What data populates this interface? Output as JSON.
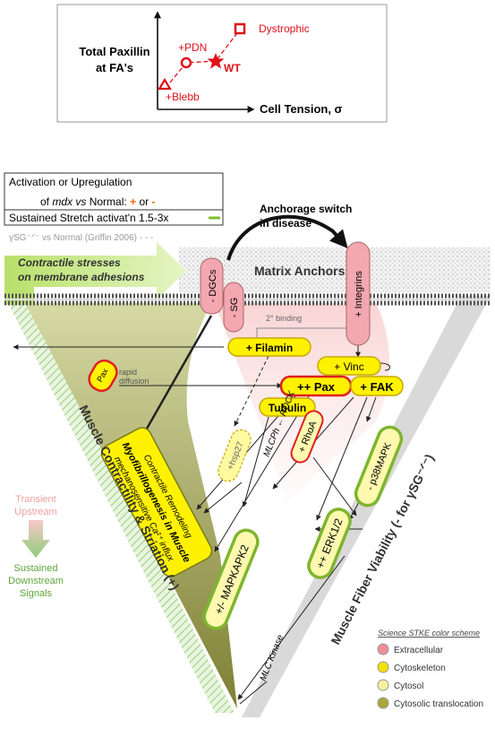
{
  "inset": {
    "y_label_1": "Total Paxillin",
    "y_label_2": "at FA's",
    "x_label": "Cell Tension, σ",
    "points": {
      "dystrophic": "Dystrophic",
      "pdn": "+PDN",
      "wt": "WT",
      "blebb": "+Blebb"
    }
  },
  "legend": {
    "row1_a": "Activation or Upregulation",
    "row1_b_prefix": "of",
    "row1_b_mdx": "mdx",
    "row1_b_vs": "vs",
    "row1_b_normal": "Normal:",
    "row1_plus": "+",
    "row1_or": "or",
    "row1_minus": "-",
    "row2": "Sustained Stretch activat'n 1.5-3x",
    "row3": "γSG⁻ᐟ⁻ vs Normal (Griffin 2006) - - -"
  },
  "top": {
    "anchorage_1": "Anchorage switch",
    "anchorage_2": "in disease",
    "stresses_1": "Contractile stresses",
    "stresses_2": "on membrane adhesions",
    "matrix_anchors": "Matrix Anchors",
    "second_binding": "2° binding"
  },
  "nodes": {
    "dgcs": "- DGCs",
    "sg": "- SG",
    "integrins": "+ Integrins",
    "filamin": "+ Filamin",
    "vinc": "+ Vinc",
    "pax": "++ Pax",
    "fak": "+ FAK",
    "pax_small": "Pax",
    "tubulin": "Tubulin",
    "rhoa": "+ RhoA",
    "hsp27": "+hsp27",
    "p38mapk": "- p38MAPK",
    "erk": "++ ERK1/2",
    "mapkapk2": "+/- MAPKAPK2"
  },
  "labels": {
    "rapid_1": "rapid",
    "rapid_2": "diffusion",
    "mlcph": "MLCPh ← ROCK",
    "mlc_kinase": "MLC Kinase",
    "remodel_1": "Contractile Remodeling",
    "remodel_2": "Myofibrillogenesis in Muscle",
    "remodel_3": "mechanosensitive Ca²⁺ influx",
    "muscle_contractility": "Muscle Contractility & Striation (+)",
    "muscle_viability": "Muscle Fiber Viability (- for γSG⁻ᐟ⁻)",
    "transient_1": "Transient",
    "transient_2": "Upstream",
    "sustained_1": "Sustained",
    "sustained_2": "Downstream",
    "sustained_3": "Signals"
  },
  "color_scheme": {
    "title": "Science STKE color scheme",
    "items": [
      "Extracellular",
      "Cytoskeleton",
      "Cytosol",
      "Cytosolic translocation"
    ],
    "colors": [
      "#ef8e98",
      "#f2e200",
      "#f7f0a0",
      "#a8a83c"
    ]
  }
}
